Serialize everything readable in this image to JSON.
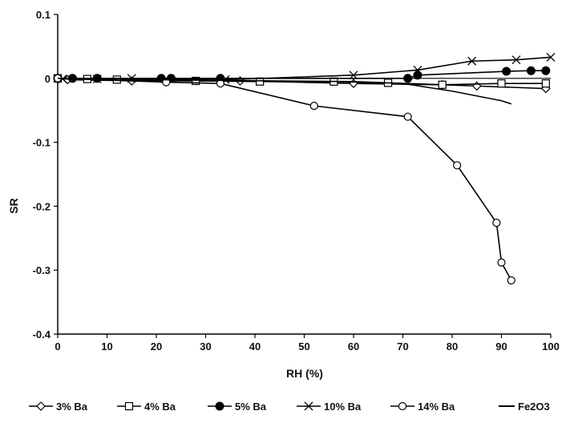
{
  "chart_data": {
    "type": "line",
    "title": "",
    "xlabel": "RH (%)",
    "ylabel": "SR",
    "xlim": [
      0,
      100
    ],
    "ylim": [
      -0.4,
      0.1
    ],
    "x_ticks": [
      0,
      10,
      20,
      30,
      40,
      50,
      60,
      70,
      80,
      90,
      100
    ],
    "y_ticks": [
      0.1,
      0,
      -0.1,
      -0.2,
      -0.3,
      -0.4
    ],
    "x_tick_labels": [
      "0",
      "10",
      "20",
      "30",
      "40",
      "50",
      "60",
      "70",
      "80",
      "90",
      "100"
    ],
    "y_tick_labels": [
      "0.1",
      "0",
      "-0.1",
      "-0.2",
      "-0.3",
      "-0.4"
    ],
    "grid": false,
    "legend_position": "bottom",
    "series": [
      {
        "name": "3% Ba",
        "marker": "diamond-open",
        "x": [
          0,
          2,
          15,
          37,
          60,
          78,
          85,
          99
        ],
        "y": [
          0,
          -0.002,
          -0.004,
          -0.004,
          -0.008,
          -0.01,
          -0.012,
          -0.016
        ]
      },
      {
        "name": "4% Ba",
        "marker": "square-open",
        "x": [
          0,
          6,
          12,
          28,
          41,
          56,
          67,
          78,
          90,
          99
        ],
        "y": [
          0,
          -0.001,
          -0.002,
          -0.004,
          -0.005,
          -0.005,
          -0.007,
          -0.01,
          -0.008,
          -0.008
        ]
      },
      {
        "name": "5% Ba",
        "marker": "circle-filled",
        "x": [
          0,
          3,
          8,
          21,
          23,
          33,
          71,
          73,
          91,
          96,
          99
        ],
        "y": [
          0,
          0,
          0,
          0,
          0,
          0,
          0,
          0.005,
          0.011,
          0.012,
          0.012
        ]
      },
      {
        "name": "10% Ba",
        "marker": "x",
        "x": [
          0,
          1,
          8,
          15,
          34,
          60,
          73,
          84,
          93,
          100
        ],
        "y": [
          0,
          -0.001,
          -0.001,
          0,
          -0.002,
          0.005,
          0.013,
          0.027,
          0.029,
          0.033
        ]
      },
      {
        "name": "14% Ba",
        "marker": "circle-open",
        "x": [
          0,
          22,
          33,
          52,
          71,
          81,
          89,
          90,
          92
        ],
        "y": [
          0,
          -0.006,
          -0.008,
          -0.043,
          -0.06,
          -0.136,
          -0.226,
          -0.288,
          -0.316
        ]
      },
      {
        "name": "Fe2O3",
        "marker": "none",
        "x": [
          0,
          30,
          60,
          70,
          80,
          90,
          92
        ],
        "y": [
          0,
          -0.003,
          -0.005,
          -0.008,
          -0.02,
          -0.035,
          -0.04
        ]
      }
    ]
  }
}
